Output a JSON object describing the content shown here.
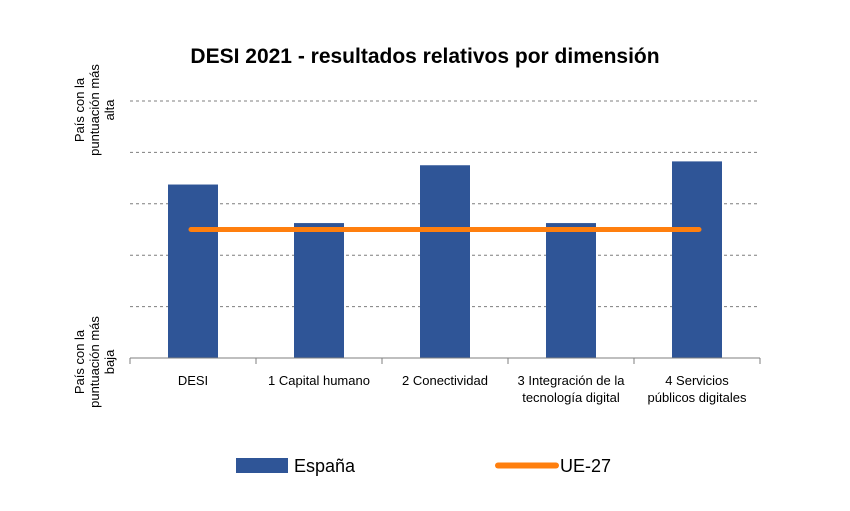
{
  "chart_data": {
    "type": "bar",
    "title": "DESI 2021 - resultados relativos por dimensión",
    "categories": [
      "DESI",
      "1 Capital humano",
      "2 Conectividad",
      "3 Integración de la tecnología digital",
      "4 Servicios públicos digitales"
    ],
    "category_lines": [
      [
        "DESI"
      ],
      [
        "1 Capital humano"
      ],
      [
        "2 Conectividad"
      ],
      [
        "3 Integración de la",
        "tecnología digital"
      ],
      [
        "4 Servicios",
        "públicos digitales"
      ]
    ],
    "y_axis": {
      "top_label_lines": [
        "País con la",
        "puntuación más",
        "alta"
      ],
      "bottom_label_lines": [
        "País con la",
        "puntuación más",
        "baja"
      ],
      "ylim": [
        0,
        1
      ],
      "grid_values": [
        0.2,
        0.4,
        0.6,
        0.8,
        1.0
      ],
      "grid": "dashed"
    },
    "series": [
      {
        "name": "España",
        "type": "bar",
        "color": "#2f5597",
        "values": [
          0.675,
          0.525,
          0.75,
          0.525,
          0.765
        ]
      },
      {
        "name": "UE-27",
        "type": "line",
        "color": "#ff7f0e",
        "values": [
          0.5,
          0.5,
          0.5,
          0.5,
          0.5
        ]
      }
    ],
    "legend": {
      "position": "bottom",
      "entries": [
        "España",
        "UE-27"
      ]
    }
  }
}
